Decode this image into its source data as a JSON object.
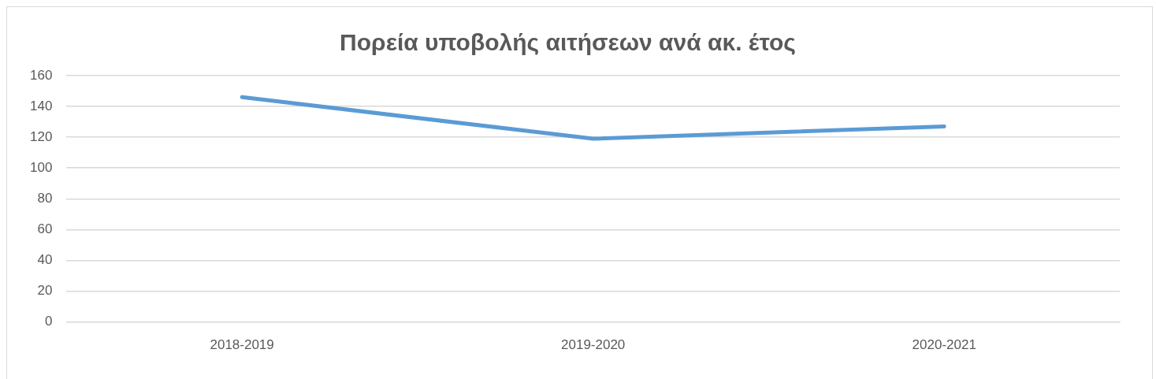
{
  "chart_data": {
    "type": "line",
    "title": "Πορεία υποβολής αιτήσεων ανά ακ. έτος",
    "categories": [
      "2018-2019",
      "2019-2020",
      "2020-2021"
    ],
    "series": [
      {
        "color": "#5b9bd5",
        "values": [
          146,
          119,
          127
        ]
      }
    ],
    "ylim": [
      0,
      160
    ],
    "yticks": [
      0,
      20,
      40,
      60,
      80,
      100,
      120,
      140,
      160
    ],
    "grid": "y",
    "legend": false,
    "marker": "none",
    "line_style": "solid"
  }
}
